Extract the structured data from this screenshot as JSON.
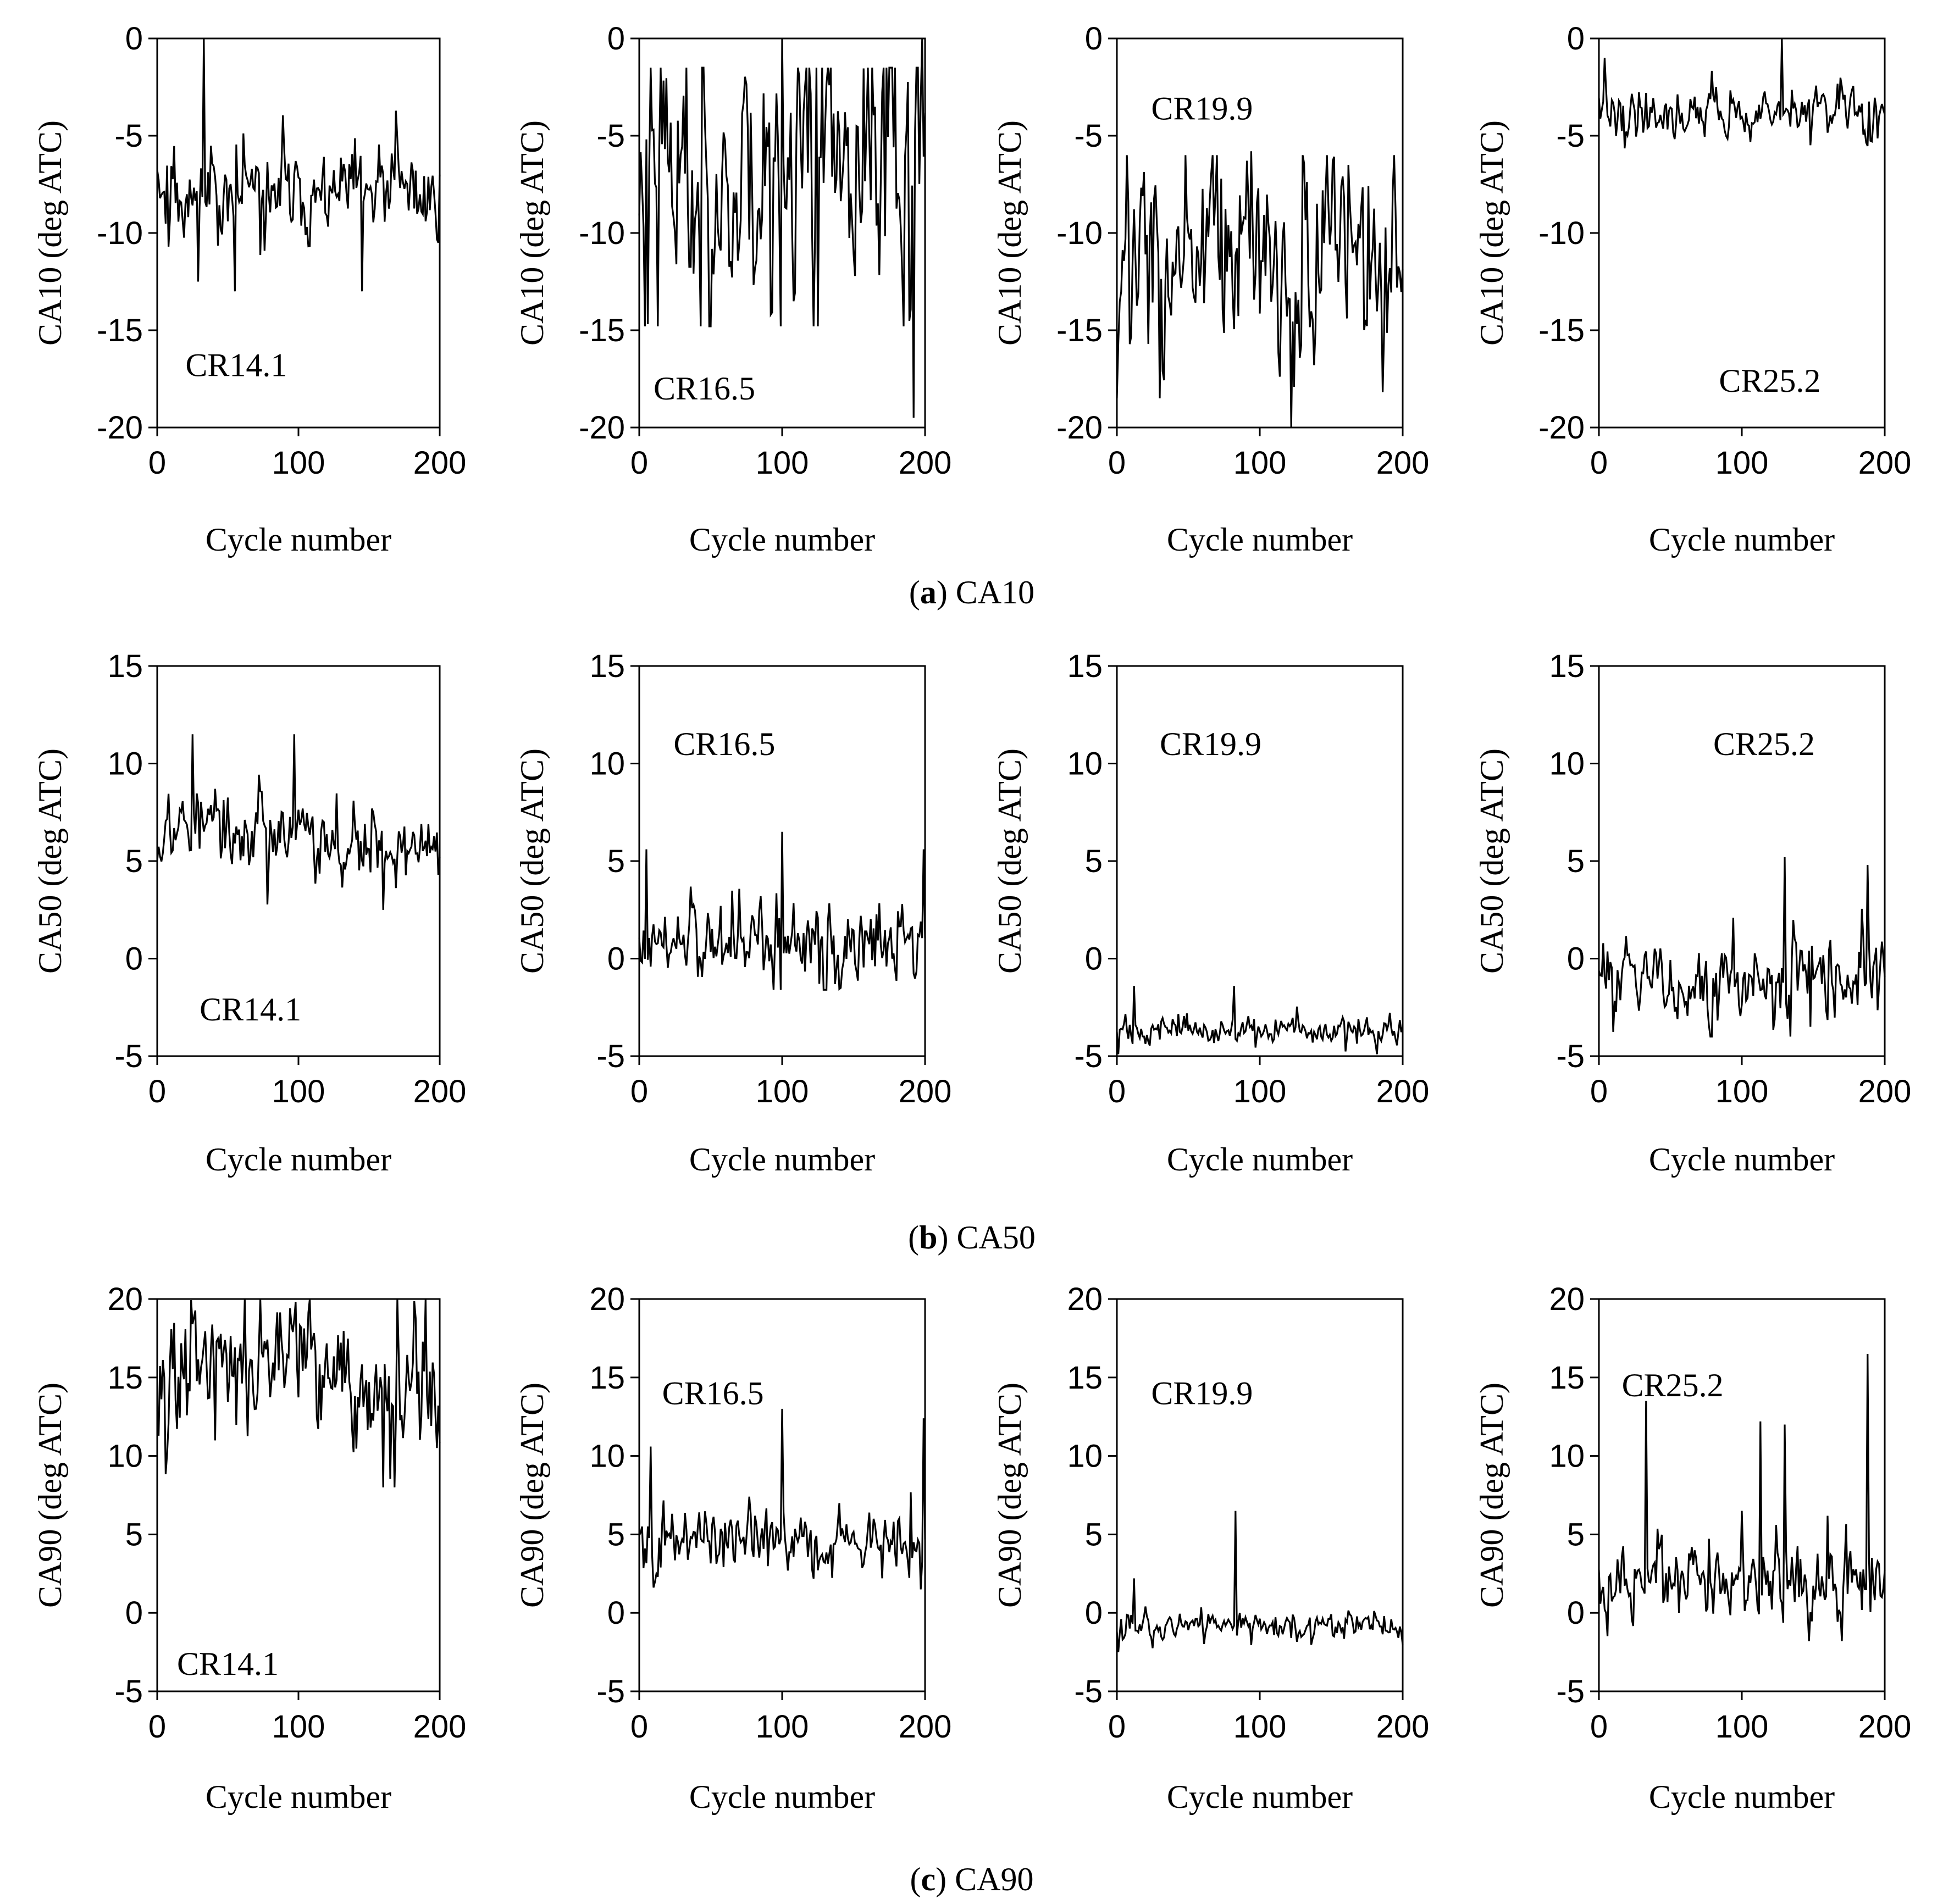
{
  "figure": {
    "captions": [
      {
        "open": "(",
        "letter": "a",
        "close": ")",
        "text": " CA10"
      },
      {
        "open": "(",
        "letter": "b",
        "close": ")",
        "text": " CA50"
      },
      {
        "open": "(",
        "letter": "c",
        "close": ")",
        "text": " CA90"
      }
    ]
  },
  "chart_data": [
    {
      "type": "line",
      "row": 0,
      "col": 0,
      "annotation": "CR14.1",
      "ylabel": "CA10 (deg ATC)",
      "xlabel": "Cycle number",
      "xlim": [
        0,
        200
      ],
      "ylim": [
        -20,
        0
      ],
      "xticks": [
        0,
        100,
        200
      ],
      "yticks": [
        0,
        -5,
        -10,
        -15,
        -20
      ],
      "series": [
        {
          "name": "CA10 CR14.1",
          "mean": -8.0,
          "lo": -12.5,
          "hi": -2.5,
          "spread": 1.6,
          "spikes": [
            [
              33,
              0
            ],
            [
              55,
              -13
            ],
            [
              145,
              -13
            ]
          ],
          "seed": 11
        }
      ]
    },
    {
      "type": "line",
      "row": 0,
      "col": 1,
      "annotation": "CR16.5",
      "ylabel": "CA10 (deg ATC)",
      "xlabel": "Cycle number",
      "xlim": [
        0,
        200
      ],
      "ylim": [
        -20,
        0
      ],
      "xticks": [
        0,
        100,
        200
      ],
      "yticks": [
        0,
        -5,
        -10,
        -15,
        -20
      ],
      "series": [
        {
          "name": "CA10 CR16.5",
          "mean": -7.0,
          "lo": -14.8,
          "hi": -1.5,
          "spread": 5.0,
          "spikes": [
            [
              100,
              0
            ],
            [
              192,
              -19.5
            ],
            [
              198,
              0
            ]
          ],
          "seed": 23
        }
      ]
    },
    {
      "type": "line",
      "row": 0,
      "col": 2,
      "annotation": "CR19.9",
      "ylabel": "CA10 (deg ATC)",
      "xlabel": "Cycle number",
      "xlim": [
        0,
        200
      ],
      "ylim": [
        -20,
        0
      ],
      "xticks": [
        0,
        100,
        200
      ],
      "yticks": [
        0,
        -5,
        -10,
        -15,
        -20
      ],
      "series": [
        {
          "name": "CA10 CR19.9",
          "mean": -11.5,
          "lo": -18.5,
          "hi": -6.0,
          "spread": 3.4,
          "spikes": [
            [
              122,
              -20
            ],
            [
              94,
              -5.8
            ]
          ],
          "seed": 37
        }
      ]
    },
    {
      "type": "line",
      "row": 0,
      "col": 3,
      "annotation": "CR25.2",
      "ylabel": "CA10 (deg ATC)",
      "xlabel": "Cycle number",
      "xlim": [
        0,
        200
      ],
      "ylim": [
        -20,
        0
      ],
      "xticks": [
        0,
        100,
        200
      ],
      "yticks": [
        0,
        -5,
        -10,
        -15,
        -20
      ],
      "series": [
        {
          "name": "CA10 CR25.2",
          "mean": -3.8,
          "lo": -6.0,
          "hi": -1.0,
          "spread": 0.9,
          "spikes": [
            [
              128,
              0
            ]
          ],
          "seed": 41
        }
      ]
    },
    {
      "type": "line",
      "row": 1,
      "col": 0,
      "annotation": "CR14.1",
      "ylabel": "CA50 (deg ATC)",
      "xlabel": "Cycle number",
      "xlim": [
        0,
        200
      ],
      "ylim": [
        -5,
        15
      ],
      "xticks": [
        0,
        100,
        200
      ],
      "yticks": [
        15,
        10,
        5,
        0,
        -5
      ],
      "series": [
        {
          "name": "CA50 CR14.1",
          "mean": 6.3,
          "lo": 2.5,
          "hi": 11.5,
          "spread": 1.3,
          "spikes": [
            [
              25,
              11.5
            ],
            [
              97,
              11.5
            ],
            [
              160,
              2.5
            ]
          ],
          "seed": 53,
          "trend": -1.5
        }
      ]
    },
    {
      "type": "line",
      "row": 1,
      "col": 1,
      "annotation": "CR16.5",
      "ylabel": "CA50 (deg ATC)",
      "xlabel": "Cycle number",
      "xlim": [
        0,
        200
      ],
      "ylim": [
        -5,
        15
      ],
      "xticks": [
        0,
        100,
        200
      ],
      "yticks": [
        15,
        10,
        5,
        0,
        -5
      ],
      "series": [
        {
          "name": "CA50 CR16.5",
          "mean": 0.8,
          "lo": -1.6,
          "hi": 5.6,
          "spread": 1.3,
          "spikes": [
            [
              5,
              5.6
            ],
            [
              100,
              6.5
            ],
            [
              199,
              5.6
            ]
          ],
          "seed": 61
        }
      ]
    },
    {
      "type": "line",
      "row": 1,
      "col": 2,
      "annotation": "CR19.9",
      "ylabel": "CA50 (deg ATC)",
      "xlabel": "Cycle number",
      "xlim": [
        0,
        200
      ],
      "ylim": [
        -5,
        15
      ],
      "xticks": [
        0,
        100,
        200
      ],
      "yticks": [
        15,
        10,
        5,
        0,
        -5
      ],
      "series": [
        {
          "name": "CA50 CR19.9",
          "mean": -3.7,
          "lo": -4.9,
          "hi": -1.4,
          "spread": 0.45,
          "spikes": [
            [
              12,
              -1.4
            ],
            [
              82,
              -1.4
            ],
            [
              1,
              -4.9
            ]
          ],
          "seed": 71
        }
      ]
    },
    {
      "type": "line",
      "row": 1,
      "col": 3,
      "annotation": "CR25.2",
      "ylabel": "CA50 (deg ATC)",
      "xlabel": "Cycle number",
      "xlim": [
        0,
        200
      ],
      "ylim": [
        -5,
        15
      ],
      "xticks": [
        0,
        100,
        200
      ],
      "yticks": [
        15,
        10,
        5,
        0,
        -5
      ],
      "series": [
        {
          "name": "CA50 CR25.2",
          "mean": -1.0,
          "lo": -4.0,
          "hi": 3.8,
          "spread": 1.3,
          "spikes": [
            [
              130,
              5.2
            ],
            [
              188,
              4.8
            ],
            [
              134,
              -4.0
            ]
          ],
          "seed": 83
        }
      ]
    },
    {
      "type": "line",
      "row": 2,
      "col": 0,
      "annotation": "CR14.1",
      "ylabel": "CA90 (deg ATC)",
      "xlabel": "Cycle number",
      "xlim": [
        0,
        200
      ],
      "ylim": [
        -5,
        20
      ],
      "xticks": [
        0,
        100,
        200
      ],
      "yticks": [
        20,
        15,
        10,
        5,
        0,
        -5
      ],
      "series": [
        {
          "name": "CA90 CR14.1",
          "mean": 15.0,
          "lo": 8.0,
          "hi": 20.0,
          "spread": 2.6,
          "spikes": [
            [
              160,
              8.0
            ],
            [
              170,
              20
            ],
            [
              190,
              20
            ]
          ],
          "seed": 97,
          "trend": -3.0
        }
      ]
    },
    {
      "type": "line",
      "row": 2,
      "col": 1,
      "annotation": "CR16.5",
      "ylabel": "CA90 (deg ATC)",
      "xlabel": "Cycle number",
      "xlim": [
        0,
        200
      ],
      "ylim": [
        -5,
        20
      ],
      "xticks": [
        0,
        100,
        200
      ],
      "yticks": [
        20,
        15,
        10,
        5,
        0,
        -5
      ],
      "series": [
        {
          "name": "CA90 CR16.5",
          "mean": 4.6,
          "lo": 1.5,
          "hi": 10.5,
          "spread": 1.4,
          "spikes": [
            [
              8,
              10.6
            ],
            [
              100,
              13.0
            ],
            [
              199,
              12.4
            ]
          ],
          "seed": 101
        }
      ]
    },
    {
      "type": "line",
      "row": 2,
      "col": 2,
      "annotation": "CR19.9",
      "ylabel": "CA90 (deg ATC)",
      "xlabel": "Cycle number",
      "xlim": [
        0,
        200
      ],
      "ylim": [
        -5,
        20
      ],
      "xticks": [
        0,
        100,
        200
      ],
      "yticks": [
        20,
        15,
        10,
        5,
        0,
        -5
      ],
      "series": [
        {
          "name": "CA90 CR19.9",
          "mean": -0.8,
          "lo": -2.5,
          "hi": 1.5,
          "spread": 0.6,
          "spikes": [
            [
              83,
              6.5
            ],
            [
              12,
              2.2
            ],
            [
              1,
              -2.5
            ]
          ],
          "seed": 113
        }
      ]
    },
    {
      "type": "line",
      "row": 2,
      "col": 3,
      "annotation": "CR25.2",
      "ylabel": "CA90 (deg ATC)",
      "xlabel": "Cycle number",
      "xlim": [
        0,
        200
      ],
      "ylim": [
        -5,
        20
      ],
      "xticks": [
        0,
        100,
        200
      ],
      "yticks": [
        20,
        15,
        10,
        5,
        0,
        -5
      ],
      "series": [
        {
          "name": "CA90 CR25.2",
          "mean": 2.0,
          "lo": -1.8,
          "hi": 6.5,
          "spread": 1.6,
          "spikes": [
            [
              33,
              13.5
            ],
            [
              113,
              12.2
            ],
            [
              130,
              12.0
            ],
            [
              188,
              16.5
            ]
          ],
          "seed": 127
        }
      ]
    }
  ]
}
